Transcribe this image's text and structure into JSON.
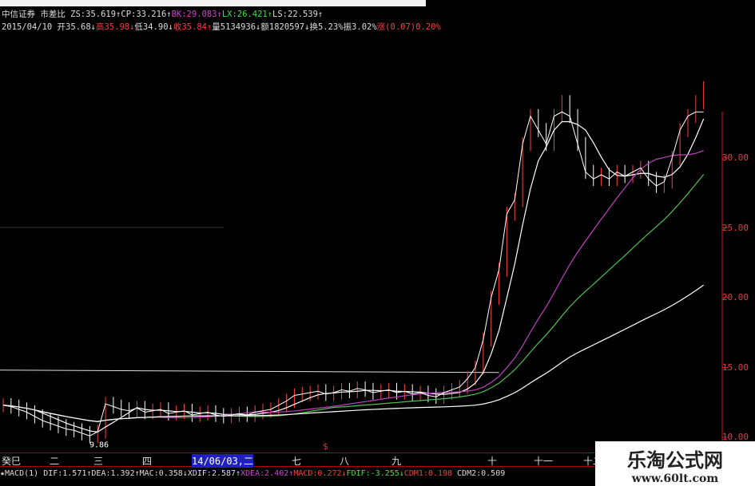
{
  "header": {
    "line1": [
      {
        "t": "中信证券 市差比 ",
        "c": "w"
      },
      {
        "t": "ZS:35.619↑",
        "c": "w"
      },
      {
        "t": "CP:33.216↑",
        "c": "w"
      },
      {
        "t": "BK:29.083↑",
        "c": "m"
      },
      {
        "t": "LX:26.421↑",
        "c": "g"
      },
      {
        "t": "LS:22.539↑",
        "c": "w"
      }
    ],
    "line2": [
      {
        "t": "2015/04/10 ",
        "c": "w"
      },
      {
        "t": "开35.68↓",
        "c": "w"
      },
      {
        "t": "高35.98↓",
        "c": "r"
      },
      {
        "t": "低34.90↓",
        "c": "w"
      },
      {
        "t": "收35.84↑",
        "c": "r"
      },
      {
        "t": "量5134936↓",
        "c": "w"
      },
      {
        "t": "额1820597↓",
        "c": "w"
      },
      {
        "t": "换5.23%",
        "c": "w"
      },
      {
        "t": "振3.02%",
        "c": "w"
      },
      {
        "t": "涨(0.07)0.20%",
        "c": "r"
      }
    ]
  },
  "macd": [
    {
      "t": "★MACD(1) ",
      "c": "w"
    },
    {
      "t": "DIF:1.571↑",
      "c": "w"
    },
    {
      "t": "DEA:1.392↑",
      "c": "w"
    },
    {
      "t": "MAC:0.358↓",
      "c": "w"
    },
    {
      "t": "XDIF:2.587↑",
      "c": "w"
    },
    {
      "t": "XDEA:2.402↑",
      "c": "m"
    },
    {
      "t": "MACD:0.272↓",
      "c": "r"
    },
    {
      "t": "FDIF:-3.255↓",
      "c": "g"
    },
    {
      "t": "CDM1:0.198",
      "c": "r"
    },
    {
      "t": " CDM2:0.509",
      "c": "w"
    }
  ],
  "watermark": {
    "title": "乐淘公式网",
    "url": "www.60lt.com"
  },
  "colors": {
    "up": "#ff4040",
    "price": "#ffffff",
    "ma1": "#ffffff",
    "ma2": "#c040c0",
    "ma3": "#50c050",
    "ma4": "#ffffff",
    "axis": "#cc2020"
  },
  "chart_data": {
    "type": "line",
    "y_ticks": [
      "30.00",
      "25.00",
      "20.00",
      "15.00",
      "10.00"
    ],
    "ylim": [
      9.5,
      33.5
    ],
    "x_labels": [
      "癸巳",
      "二",
      "三",
      "四",
      "14/06/03,二",
      "七",
      "八",
      "九",
      "十",
      "十一",
      "十二"
    ],
    "low_annotation": "9.86",
    "signal_marker": "$",
    "support_level": 14.7,
    "close": [
      12.3,
      12.2,
      12.0,
      11.8,
      11.5,
      11.2,
      11.0,
      10.8,
      10.6,
      10.5,
      10.3,
      10.1,
      10.4,
      12.4,
      12.2,
      12.0,
      11.9,
      12.1,
      11.8,
      11.9,
      12.0,
      11.7,
      11.8,
      11.9,
      11.6,
      11.7,
      11.8,
      11.6,
      11.5,
      11.6,
      11.7,
      11.6,
      11.8,
      11.9,
      12.0,
      12.3,
      12.6,
      13.0,
      13.1,
      13.2,
      13.3,
      13.1,
      13.2,
      13.4,
      13.3,
      13.5,
      13.4,
      13.2,
      13.3,
      13.4,
      13.2,
      13.3,
      13.1,
      13.2,
      13.0,
      12.9,
      13.2,
      13.4,
      13.6,
      14.2,
      15.0,
      17.0,
      20.0,
      22.0,
      26.0,
      27.0,
      31.0,
      33.0,
      32.0,
      31.0,
      33.0,
      34.0,
      33.0,
      31.0,
      29.0,
      28.5,
      28.8,
      28.5,
      29.0,
      28.7,
      29.0,
      29.3,
      28.5,
      28.0,
      28.3,
      30.0,
      32.0,
      33.0,
      34.0,
      35.0
    ],
    "ma_periods": [
      5,
      20,
      30,
      60
    ]
  }
}
